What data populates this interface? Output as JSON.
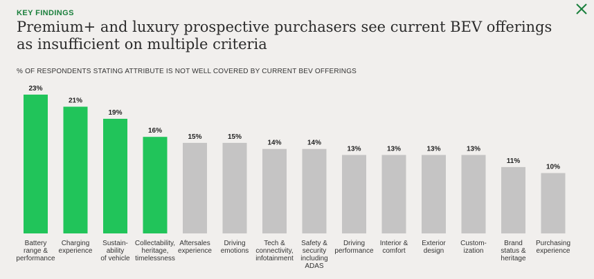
{
  "header": {
    "kicker": "KEY FINDINGS",
    "title": "Premium+ and luxury prospective purchasers see current BEV offerings as insufficient on multiple criteria",
    "close_icon": "close-icon"
  },
  "colors": {
    "highlight": "#21c45a",
    "neutral": "#c5c4c4",
    "accent_text": "#1a7f3c"
  },
  "chart_data": {
    "type": "bar",
    "title": "% OF RESPONDENTS STATING ATTRIBUTE IS NOT WELL COVERED BY CURRENT BEV OFFERINGS",
    "ylabel": "",
    "xlabel": "",
    "ylim": [
      0,
      23
    ],
    "grid": false,
    "categories": [
      [
        "Battery",
        "range &",
        "performance"
      ],
      [
        "Charging",
        "experience"
      ],
      [
        "Sustain-",
        "ability",
        "of vehicle"
      ],
      [
        "Collectability,",
        "heritage,",
        "timelessness"
      ],
      [
        "Aftersales",
        "experience"
      ],
      [
        "Driving",
        "emotions"
      ],
      [
        "Tech &",
        "connectivity,",
        "infotainment"
      ],
      [
        "Safety &",
        "security",
        "including",
        "ADAS"
      ],
      [
        "Driving",
        "performance"
      ],
      [
        "Interior &",
        "comfort"
      ],
      [
        "Exterior",
        "design"
      ],
      [
        "Custom-",
        "ization"
      ],
      [
        "Brand",
        "status &",
        "heritage"
      ],
      [
        "Purchasing",
        "experience"
      ]
    ],
    "values": [
      23,
      21,
      19,
      16,
      15,
      15,
      14,
      14,
      13,
      13,
      13,
      13,
      11,
      10
    ],
    "value_labels": [
      "23%",
      "21%",
      "19%",
      "16%",
      "15%",
      "15%",
      "14%",
      "14%",
      "13%",
      "13%",
      "13%",
      "13%",
      "11%",
      "10%"
    ],
    "highlighted": [
      true,
      true,
      true,
      true,
      false,
      false,
      false,
      false,
      false,
      false,
      false,
      false,
      false,
      false
    ]
  }
}
